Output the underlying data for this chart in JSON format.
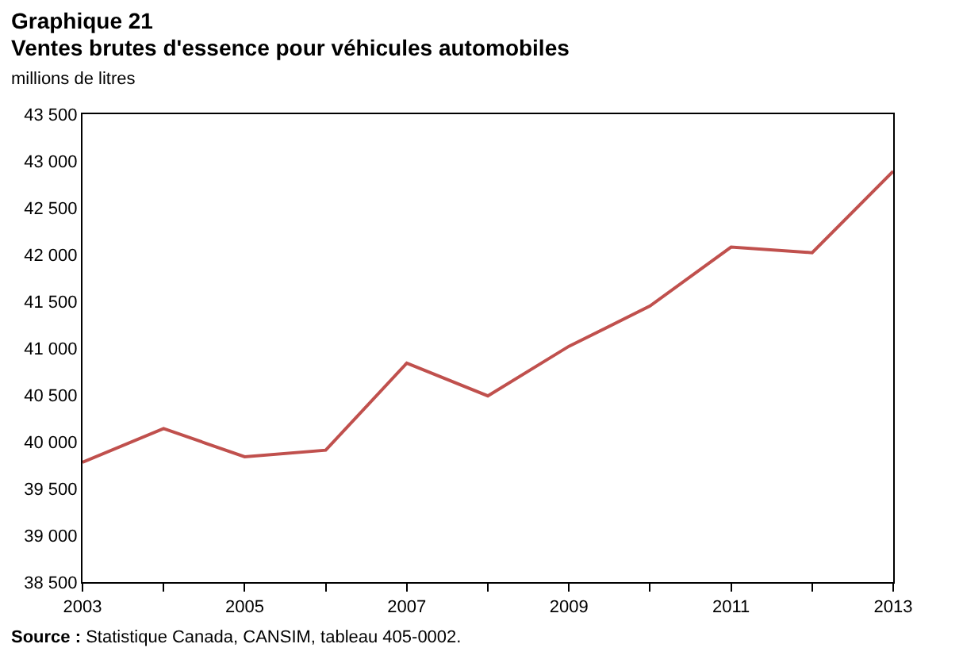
{
  "chart_data": {
    "type": "line",
    "title": "Graphique 21",
    "subtitle": "Ventes brutes d'essence pour véhicules automobiles",
    "ylabel": "millions de litres",
    "x": [
      2003,
      2004,
      2005,
      2006,
      2007,
      2008,
      2009,
      2010,
      2011,
      2012,
      2013
    ],
    "series": [
      {
        "color": "#c0504d",
        "values": [
          39780,
          40140,
          39840,
          39910,
          40840,
          40490,
          41020,
          41450,
          42080,
          42020,
          42890
        ]
      }
    ],
    "xlim": [
      2003,
      2013
    ],
    "xticks": [
      2003,
      {
        "value": 2004,
        "label": null
      },
      2005,
      {
        "value": 2006,
        "label": null
      },
      2007,
      {
        "value": 2008,
        "label": null
      },
      2009,
      {
        "value": 2010,
        "label": null
      },
      2011,
      {
        "value": 2012,
        "label": null
      },
      2013
    ],
    "ylim": [
      38500,
      43500
    ],
    "yticks": [
      {
        "value": 38500,
        "label": "38 500"
      },
      {
        "value": 39000,
        "label": "39 000"
      },
      {
        "value": 39500,
        "label": "39 500"
      },
      {
        "value": 40000,
        "label": "40 000"
      },
      {
        "value": 40500,
        "label": "40 500"
      },
      {
        "value": 41000,
        "label": "41 000"
      },
      {
        "value": 41500,
        "label": "41 500"
      },
      {
        "value": 42000,
        "label": "42 000"
      },
      {
        "value": 42500,
        "label": "42 500"
      },
      {
        "value": 43000,
        "label": "43 000"
      },
      {
        "value": 43500,
        "label": "43 500"
      }
    ],
    "marker": "none",
    "line_style": "solid",
    "annotations": [
      "Source : Statistique Canada, CANSIM, tableau 405-0002."
    ]
  }
}
